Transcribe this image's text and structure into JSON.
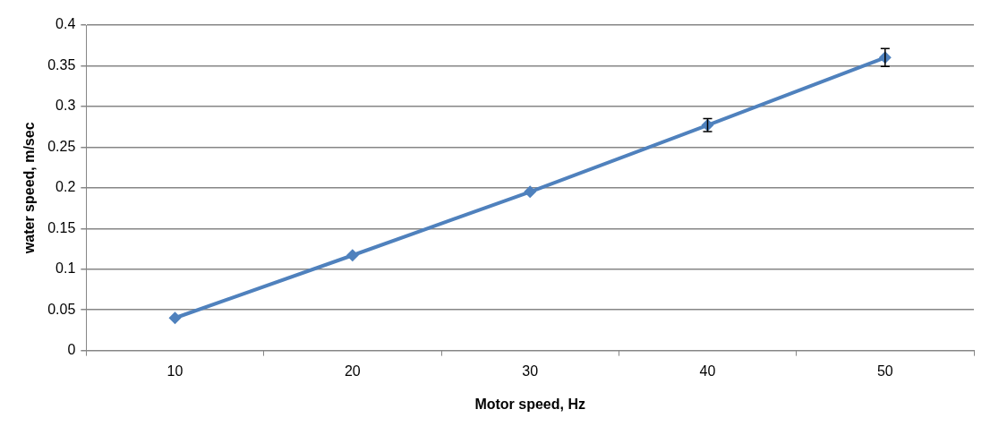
{
  "chart_data": {
    "type": "line",
    "xlabel": "Motor speed, Hz",
    "ylabel": "water speed, m/sec",
    "categories": [
      "10",
      "20",
      "30",
      "40",
      "50"
    ],
    "series": [
      {
        "color": "#4f81bd",
        "values": [
          0.04,
          0.117,
          0.195,
          0.277,
          0.36
        ],
        "errors": [
          null,
          null,
          null,
          0.008,
          0.011
        ]
      }
    ],
    "ylim": [
      0,
      0.4
    ],
    "yticks": [
      0,
      0.05,
      0.1,
      0.15,
      0.2,
      0.25,
      0.3,
      0.35,
      0.4
    ],
    "grid": "y",
    "legend": false,
    "marker": "diamond",
    "line_style": "solid"
  }
}
